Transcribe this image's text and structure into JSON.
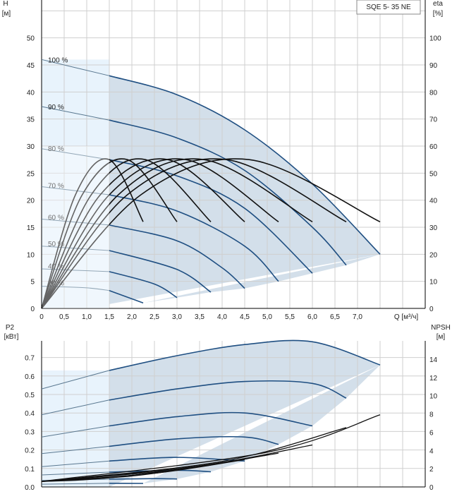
{
  "chart_data": [
    {
      "type": "line",
      "title": "SQE 5- 35 NE",
      "xlabel": "Q [м³/ч]",
      "ylabel_left": "H",
      "ylabel_left_unit": "[м]",
      "ylabel_right": "eta",
      "ylabel_right_unit": "[%]",
      "xlim": [
        0,
        8.5
      ],
      "ylim_left": [
        0,
        57
      ],
      "ylim_right": [
        0,
        114
      ],
      "x_ticks": [
        "0",
        "0,5",
        "1,0",
        "1,5",
        "2,0",
        "2,5",
        "3,0",
        "3,5",
        "4,0",
        "4,5",
        "5,0",
        "5,5",
        "6,0",
        "6,5",
        "7,0"
      ],
      "y_ticks_left": [
        "0",
        "5",
        "10",
        "15",
        "20",
        "25",
        "30",
        "35",
        "40",
        "45",
        "50"
      ],
      "y_ticks_right": [
        "0",
        "10",
        "20",
        "30",
        "40",
        "50",
        "60",
        "70",
        "80",
        "90",
        "100"
      ],
      "grid": true,
      "speed_labels": [
        "100 %",
        "90 %",
        "80 %",
        "70 %",
        "60 %",
        "50 %",
        "40 %",
        "30 %"
      ],
      "head_curves": [
        {
          "name": "100 %",
          "q": [
            0,
            1.5,
            3.0,
            4.5,
            6.0,
            7.5
          ],
          "h": [
            46,
            43,
            39.5,
            33,
            23,
            10
          ],
          "label_at": 45.2
        },
        {
          "name": "90 %",
          "q": [
            0,
            1.5,
            3.0,
            4.5,
            6.0,
            6.75
          ],
          "h": [
            37.3,
            34.8,
            31.5,
            25.5,
            15,
            8
          ],
          "label_at": 36.5
        },
        {
          "name": "80 %",
          "q": [
            0,
            1.5,
            3.0,
            4.5,
            6.0
          ],
          "h": [
            29.5,
            27.5,
            24.5,
            18.5,
            6.5
          ],
          "label_at": 28.8
        },
        {
          "name": "70 %",
          "q": [
            0,
            1.5,
            3.0,
            4.5,
            5.25
          ],
          "h": [
            22.5,
            21,
            18,
            11.5,
            5
          ],
          "label_at": 22
        },
        {
          "name": "60 %",
          "q": [
            0,
            1.5,
            3.0,
            4.0,
            4.5
          ],
          "h": [
            16.5,
            15.4,
            12.5,
            7.5,
            3.7
          ],
          "label_at": 16.1
        },
        {
          "name": "50 %",
          "q": [
            0,
            1.5,
            3.0,
            3.75
          ],
          "h": [
            11.5,
            10.7,
            7.2,
            3
          ],
          "label_at": 11.2
        },
        {
          "name": "40 %",
          "q": [
            0,
            1.5,
            2.5,
            3.0
          ],
          "h": [
            7.3,
            6.8,
            4.5,
            2
          ],
          "label_at": 7.1
        },
        {
          "name": "30 %",
          "q": [
            0,
            1.0,
            1.5,
            2.25
          ],
          "h": [
            4.1,
            3.8,
            3.3,
            1
          ],
          "label_at": 4
        }
      ],
      "efficiency_curves": [
        {
          "q": [
            0,
            0.75,
            1.5,
            2.25
          ],
          "eta": [
            0,
            42,
            55,
            32
          ]
        },
        {
          "q": [
            0,
            0.9,
            1.9,
            3.0
          ],
          "eta": [
            0,
            42,
            55,
            32
          ]
        },
        {
          "q": [
            0,
            1.1,
            2.3,
            3.75
          ],
          "eta": [
            0,
            42,
            55,
            32
          ]
        },
        {
          "q": [
            0,
            1.3,
            2.8,
            4.5
          ],
          "eta": [
            0,
            42,
            55,
            32
          ]
        },
        {
          "q": [
            0,
            1.5,
            3.2,
            5.25
          ],
          "eta": [
            0,
            42,
            55,
            32
          ]
        },
        {
          "q": [
            0,
            1.7,
            3.6,
            6.0
          ],
          "eta": [
            0,
            42,
            55,
            32
          ]
        },
        {
          "q": [
            0,
            1.9,
            4.1,
            6.75
          ],
          "eta": [
            0,
            42,
            55,
            32
          ]
        },
        {
          "q": [
            0,
            2.2,
            4.6,
            7.5
          ],
          "eta": [
            0,
            42,
            55,
            32
          ]
        }
      ]
    },
    {
      "type": "line",
      "xlabel": "Q [м³/ч]",
      "ylabel_left": "P2",
      "ylabel_left_unit": "[кВт]",
      "ylabel_right": "NPSH",
      "ylabel_right_unit": "[м]",
      "xlim": [
        0,
        8.5
      ],
      "ylim_left": [
        0,
        0.79
      ],
      "ylim_right": [
        0,
        16
      ],
      "y_ticks_left": [
        "0.0",
        "0.1",
        "0.2",
        "0.3",
        "0.4",
        "0.5",
        "0.6",
        "0.7"
      ],
      "y_ticks_right": [
        "0",
        "2",
        "4",
        "6",
        "8",
        "10",
        "12",
        "14"
      ],
      "grid": true,
      "power_curves": [
        {
          "q": [
            0,
            1.5,
            3.0,
            4.5,
            6.0,
            7.5
          ],
          "p": [
            0.53,
            0.63,
            0.71,
            0.77,
            0.785,
            0.66
          ]
        },
        {
          "q": [
            0,
            1.5,
            3.0,
            4.5,
            6.0,
            6.75
          ],
          "p": [
            0.39,
            0.47,
            0.53,
            0.57,
            0.56,
            0.48
          ]
        },
        {
          "q": [
            0,
            1.5,
            3.0,
            4.5,
            6.0
          ],
          "p": [
            0.27,
            0.33,
            0.38,
            0.4,
            0.33
          ]
        },
        {
          "q": [
            0,
            1.5,
            3.0,
            4.5,
            5.25
          ],
          "p": [
            0.18,
            0.22,
            0.26,
            0.27,
            0.23
          ]
        },
        {
          "q": [
            0,
            1.5,
            3.0,
            4.5
          ],
          "p": [
            0.11,
            0.14,
            0.16,
            0.14
          ]
        },
        {
          "q": [
            0,
            1.5,
            3.0,
            3.75
          ],
          "p": [
            0.065,
            0.08,
            0.09,
            0.082
          ]
        },
        {
          "q": [
            0,
            1.5,
            2.5,
            3.0
          ],
          "p": [
            0.035,
            0.042,
            0.045,
            0.043
          ]
        },
        {
          "q": [
            0,
            1.0,
            1.5,
            2.25
          ],
          "p": [
            0.015,
            0.018,
            0.02,
            0.019
          ]
        }
      ],
      "npsh_curves": [
        {
          "q": [
            0,
            1.0,
            2.25
          ],
          "npsh": [
            0.6,
            0.8,
            1.4
          ]
        },
        {
          "q": [
            0,
            1.5,
            3.0
          ],
          "npsh": [
            0.6,
            1.0,
            1.9
          ]
        },
        {
          "q": [
            0,
            2.0,
            3.75
          ],
          "npsh": [
            0.6,
            1.2,
            2.4
          ]
        },
        {
          "q": [
            0,
            2.5,
            4.5
          ],
          "npsh": [
            0.6,
            1.5,
            3.0
          ]
        },
        {
          "q": [
            0,
            3.0,
            5.25
          ],
          "npsh": [
            0.6,
            1.9,
            3.7
          ]
        },
        {
          "q": [
            0,
            3.5,
            6.0
          ],
          "npsh": [
            0.6,
            2.3,
            4.6
          ]
        },
        {
          "q": [
            0,
            4.0,
            6.75
          ],
          "npsh": [
            0.6,
            2.8,
            6.5
          ]
        },
        {
          "q": [
            0,
            5.0,
            7.5
          ],
          "npsh": [
            0.6,
            3.8,
            7.9
          ]
        }
      ]
    }
  ]
}
